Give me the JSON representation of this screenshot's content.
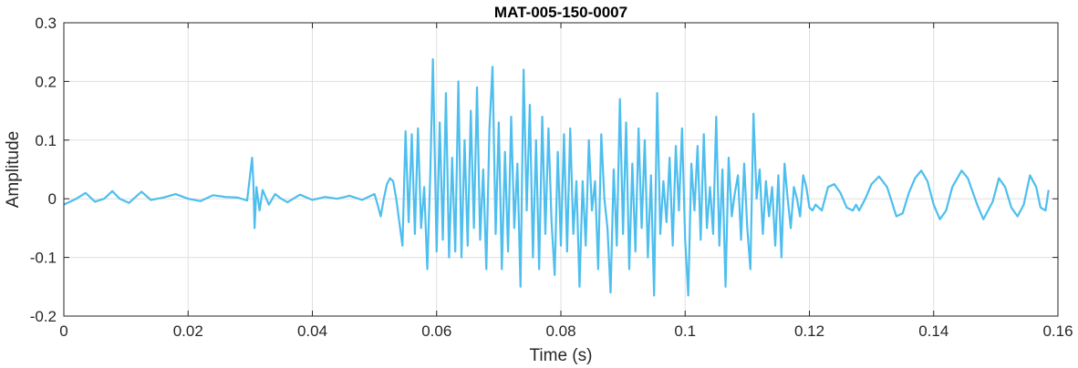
{
  "chart_data": {
    "type": "line",
    "title": "MAT-005-150-0007",
    "xlabel": "Time (s)",
    "ylabel": "Amplitude",
    "xlim": [
      0,
      0.16
    ],
    "ylim": [
      -0.2,
      0.3
    ],
    "xticks": [
      0,
      0.02,
      0.04,
      0.06,
      0.08,
      0.1,
      0.12,
      0.14,
      0.16
    ],
    "xtick_labels": [
      "0",
      "0.02",
      "0.04",
      "0.06",
      "0.08",
      "0.1",
      "0.12",
      "0.14",
      "0.16"
    ],
    "yticks": [
      -0.2,
      -0.1,
      0,
      0.1,
      0.2,
      0.3
    ],
    "ytick_labels": [
      "-0.2",
      "-0.1",
      "0",
      "0.1",
      "0.2",
      "0.3"
    ],
    "grid": true,
    "line_color": "#4dbeee",
    "series": [
      {
        "x_end": 0.1585,
        "points": [
          [
            0,
            -0.01
          ],
          [
            0.002,
            0.0
          ],
          [
            0.0035,
            0.01
          ],
          [
            0.005,
            -0.005
          ],
          [
            0.0065,
            0.0
          ],
          [
            0.0078,
            0.013
          ],
          [
            0.009,
            0.0
          ],
          [
            0.0105,
            -0.007
          ],
          [
            0.0125,
            0.012
          ],
          [
            0.014,
            -0.002
          ],
          [
            0.016,
            0.002
          ],
          [
            0.018,
            0.008
          ],
          [
            0.02,
            0.0
          ],
          [
            0.022,
            -0.004
          ],
          [
            0.024,
            0.006
          ],
          [
            0.026,
            0.003
          ],
          [
            0.028,
            0.002
          ],
          [
            0.0295,
            -0.003
          ],
          [
            0.0303,
            0.07
          ],
          [
            0.0305,
            0.03
          ],
          [
            0.0307,
            -0.05
          ],
          [
            0.031,
            0.02
          ],
          [
            0.0315,
            -0.02
          ],
          [
            0.032,
            0.015
          ],
          [
            0.033,
            -0.01
          ],
          [
            0.034,
            0.008
          ],
          [
            0.035,
            0.0
          ],
          [
            0.036,
            -0.006
          ],
          [
            0.038,
            0.007
          ],
          [
            0.04,
            -0.002
          ],
          [
            0.042,
            0.003
          ],
          [
            0.044,
            0.0
          ],
          [
            0.046,
            0.005
          ],
          [
            0.048,
            -0.002
          ],
          [
            0.05,
            0.008
          ],
          [
            0.0505,
            -0.01
          ],
          [
            0.051,
            -0.03
          ],
          [
            0.0515,
            0.0
          ],
          [
            0.052,
            0.025
          ],
          [
            0.0525,
            0.035
          ],
          [
            0.053,
            0.03
          ],
          [
            0.0535,
            0.0
          ],
          [
            0.054,
            -0.04
          ],
          [
            0.0545,
            -0.08
          ],
          [
            0.055,
            0.115
          ],
          [
            0.0555,
            -0.04
          ],
          [
            0.056,
            0.11
          ],
          [
            0.0565,
            -0.06
          ],
          [
            0.057,
            0.12
          ],
          [
            0.0575,
            -0.05
          ],
          [
            0.058,
            0.02
          ],
          [
            0.0585,
            -0.12
          ],
          [
            0.059,
            0.05
          ],
          [
            0.0594,
            0.238
          ],
          [
            0.06,
            -0.09
          ],
          [
            0.0605,
            0.13
          ],
          [
            0.061,
            -0.07
          ],
          [
            0.0615,
            0.18
          ],
          [
            0.062,
            -0.1
          ],
          [
            0.0625,
            0.07
          ],
          [
            0.063,
            -0.09
          ],
          [
            0.0635,
            0.2
          ],
          [
            0.064,
            -0.1
          ],
          [
            0.0645,
            0.1
          ],
          [
            0.065,
            -0.08
          ],
          [
            0.0655,
            0.15
          ],
          [
            0.066,
            -0.05
          ],
          [
            0.0665,
            0.19
          ],
          [
            0.067,
            -0.07
          ],
          [
            0.0675,
            0.05
          ],
          [
            0.068,
            -0.12
          ],
          [
            0.0685,
            0.12
          ],
          [
            0.069,
            0.225
          ],
          [
            0.0695,
            -0.06
          ],
          [
            0.07,
            0.13
          ],
          [
            0.0705,
            -0.12
          ],
          [
            0.071,
            0.08
          ],
          [
            0.0715,
            -0.09
          ],
          [
            0.072,
            0.14
          ],
          [
            0.0725,
            -0.05
          ],
          [
            0.073,
            0.06
          ],
          [
            0.0735,
            -0.15
          ],
          [
            0.074,
            0.22
          ],
          [
            0.0745,
            -0.02
          ],
          [
            0.075,
            0.16
          ],
          [
            0.0755,
            -0.1
          ],
          [
            0.076,
            0.1
          ],
          [
            0.0765,
            -0.12
          ],
          [
            0.077,
            0.14
          ],
          [
            0.0775,
            -0.06
          ],
          [
            0.078,
            0.12
          ],
          [
            0.0785,
            -0.04
          ],
          [
            0.079,
            -0.13
          ],
          [
            0.0795,
            0.08
          ],
          [
            0.08,
            -0.08
          ],
          [
            0.0805,
            0.11
          ],
          [
            0.081,
            -0.09
          ],
          [
            0.0815,
            0.12
          ],
          [
            0.082,
            -0.06
          ],
          [
            0.0825,
            0.03
          ],
          [
            0.083,
            -0.15
          ],
          [
            0.0835,
            0.03
          ],
          [
            0.084,
            -0.08
          ],
          [
            0.0845,
            0.1
          ],
          [
            0.085,
            -0.02
          ],
          [
            0.0855,
            0.03
          ],
          [
            0.086,
            -0.12
          ],
          [
            0.0865,
            0.11
          ],
          [
            0.087,
            0.0
          ],
          [
            0.0875,
            -0.05
          ],
          [
            0.088,
            -0.16
          ],
          [
            0.0885,
            0.05
          ],
          [
            0.089,
            -0.08
          ],
          [
            0.0895,
            0.17
          ],
          [
            0.09,
            -0.06
          ],
          [
            0.0905,
            0.13
          ],
          [
            0.091,
            -0.12
          ],
          [
            0.0915,
            0.06
          ],
          [
            0.092,
            -0.09
          ],
          [
            0.0925,
            0.12
          ],
          [
            0.093,
            -0.05
          ],
          [
            0.0935,
            0.1
          ],
          [
            0.094,
            -0.1
          ],
          [
            0.0945,
            0.04
          ],
          [
            0.095,
            -0.165
          ],
          [
            0.0955,
            0.18
          ],
          [
            0.096,
            -0.06
          ],
          [
            0.0965,
            0.03
          ],
          [
            0.097,
            -0.04
          ],
          [
            0.0975,
            0.07
          ],
          [
            0.098,
            -0.08
          ],
          [
            0.0985,
            0.09
          ],
          [
            0.099,
            -0.02
          ],
          [
            0.0995,
            0.12
          ],
          [
            0.1,
            -0.07
          ],
          [
            0.1005,
            -0.165
          ],
          [
            0.101,
            0.06
          ],
          [
            0.1015,
            -0.02
          ],
          [
            0.102,
            0.09
          ],
          [
            0.1025,
            -0.07
          ],
          [
            0.103,
            0.11
          ],
          [
            0.1035,
            -0.05
          ],
          [
            0.104,
            0.02
          ],
          [
            0.1045,
            -0.06
          ],
          [
            0.105,
            0.14
          ],
          [
            0.1055,
            -0.08
          ],
          [
            0.106,
            0.05
          ],
          [
            0.1065,
            -0.15
          ],
          [
            0.107,
            0.07
          ],
          [
            0.1075,
            -0.03
          ],
          [
            0.108,
            0.01
          ],
          [
            0.1085,
            0.04
          ],
          [
            0.109,
            -0.07
          ],
          [
            0.1095,
            0.06
          ],
          [
            0.11,
            -0.05
          ],
          [
            0.1105,
            -0.12
          ],
          [
            0.111,
            0.145
          ],
          [
            0.1115,
            0.0
          ],
          [
            0.112,
            0.05
          ],
          [
            0.1125,
            -0.06
          ],
          [
            0.113,
            0.03
          ],
          [
            0.1135,
            -0.03
          ],
          [
            0.114,
            0.02
          ],
          [
            0.1145,
            -0.08
          ],
          [
            0.115,
            0.04
          ],
          [
            0.1155,
            -0.1
          ],
          [
            0.116,
            0.06
          ],
          [
            0.1165,
            0.0
          ],
          [
            0.117,
            -0.05
          ],
          [
            0.1175,
            0.02
          ],
          [
            0.118,
            0.0
          ],
          [
            0.1185,
            -0.03
          ],
          [
            0.119,
            0.04
          ],
          [
            0.1195,
            0.02
          ],
          [
            0.12,
            -0.015
          ],
          [
            0.1205,
            -0.02
          ],
          [
            0.121,
            -0.01
          ],
          [
            0.122,
            -0.02
          ],
          [
            0.1225,
            0.0
          ],
          [
            0.123,
            0.02
          ],
          [
            0.124,
            0.025
          ],
          [
            0.125,
            0.01
          ],
          [
            0.126,
            -0.015
          ],
          [
            0.127,
            -0.02
          ],
          [
            0.1275,
            -0.01
          ],
          [
            0.128,
            -0.02
          ],
          [
            0.129,
            0.0
          ],
          [
            0.13,
            0.025
          ],
          [
            0.1312,
            0.038
          ],
          [
            0.1325,
            0.02
          ],
          [
            0.134,
            -0.03
          ],
          [
            0.135,
            -0.025
          ],
          [
            0.136,
            0.01
          ],
          [
            0.137,
            0.035
          ],
          [
            0.138,
            0.048
          ],
          [
            0.139,
            0.03
          ],
          [
            0.14,
            -0.01
          ],
          [
            0.141,
            -0.035
          ],
          [
            0.142,
            -0.02
          ],
          [
            0.143,
            0.02
          ],
          [
            0.1445,
            0.048
          ],
          [
            0.1455,
            0.035
          ],
          [
            0.147,
            -0.01
          ],
          [
            0.148,
            -0.035
          ],
          [
            0.1495,
            -0.005
          ],
          [
            0.1505,
            0.035
          ],
          [
            0.1515,
            0.02
          ],
          [
            0.1525,
            -0.015
          ],
          [
            0.1535,
            -0.03
          ],
          [
            0.1545,
            -0.01
          ],
          [
            0.1555,
            0.04
          ],
          [
            0.1565,
            0.02
          ],
          [
            0.1572,
            -0.015
          ],
          [
            0.158,
            -0.02
          ],
          [
            0.1585,
            0.015
          ]
        ]
      }
    ]
  }
}
